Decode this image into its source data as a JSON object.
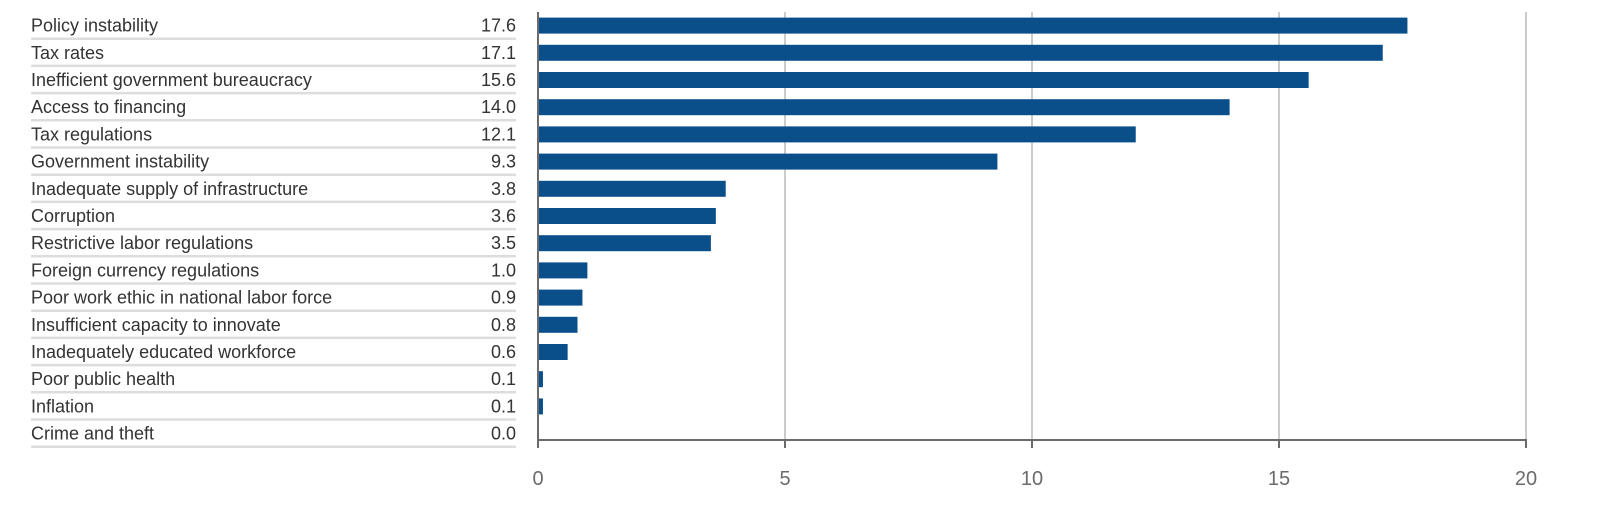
{
  "chart_data": {
    "type": "bar",
    "orientation": "horizontal",
    "categories": [
      "Policy instability",
      "Tax rates",
      "Inefficient government bureaucracy",
      "Access to financing",
      "Tax regulations",
      "Government instability",
      "Inadequate supply of infrastructure",
      "Corruption",
      "Restrictive labor regulations",
      "Foreign currency regulations",
      "Poor work ethic in national labor force",
      "Insufficient capacity to innovate",
      "Inadequately educated workforce",
      "Poor public health",
      "Inflation",
      "Crime and theft"
    ],
    "values": [
      17.6,
      17.1,
      15.6,
      14.0,
      12.1,
      9.3,
      3.8,
      3.6,
      3.5,
      1.0,
      0.9,
      0.8,
      0.6,
      0.1,
      0.1,
      0.0
    ],
    "value_labels": [
      "17.6",
      "17.1",
      "15.6",
      "14.0",
      "12.1",
      "9.3",
      "3.8",
      "3.6",
      "3.5",
      "1.0",
      "0.9",
      "0.8",
      "0.6",
      "0.1",
      "0.1",
      "0.0"
    ],
    "xlim": [
      0,
      20
    ],
    "xticks": [
      "0",
      "5",
      "10",
      "15",
      "20"
    ],
    "title": "",
    "xlabel": "",
    "ylabel": "",
    "grid": "vertical",
    "bar_color": "#0b4f8a",
    "grid_color": "#cccccc",
    "axis_color": "#6b6b6b",
    "row_rule_color": "#dddddd"
  }
}
